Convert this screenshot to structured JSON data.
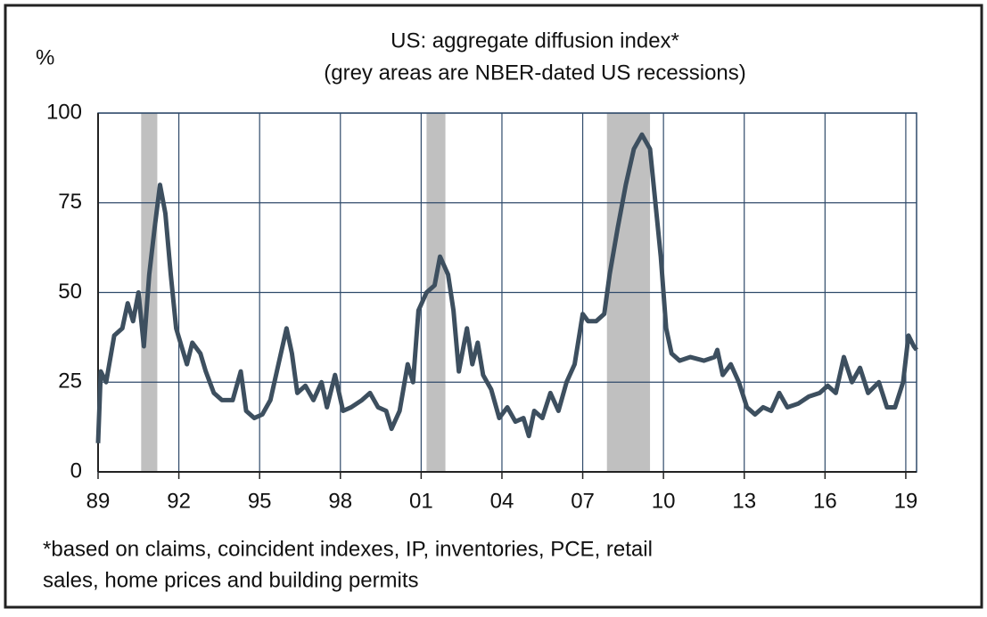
{
  "chart_data": {
    "type": "line",
    "title": "US: aggregate diffusion index*",
    "subtitle": "(grey areas are NBER-dated US recessions)",
    "y_label": "%",
    "footnote": [
      "*based on claims, coincident indexes, IP, inventories, PCE, retail",
      "sales, home prices and building permits"
    ],
    "xlim": [
      1989,
      2019.4
    ],
    "xticks": [
      {
        "value": 1989,
        "label": "89"
      },
      {
        "value": 1992,
        "label": "92"
      },
      {
        "value": 1995,
        "label": "95"
      },
      {
        "value": 1998,
        "label": "98"
      },
      {
        "value": 2001,
        "label": "01"
      },
      {
        "value": 2004,
        "label": "04"
      },
      {
        "value": 2007,
        "label": "07"
      },
      {
        "value": 2010,
        "label": "10"
      },
      {
        "value": 2013,
        "label": "13"
      },
      {
        "value": 2016,
        "label": "16"
      },
      {
        "value": 2019,
        "label": "19"
      }
    ],
    "ylim": [
      0,
      100
    ],
    "yticks": [
      0,
      25,
      50,
      75,
      100
    ],
    "grid": true,
    "recessions": [
      {
        "start": 1990.6,
        "end": 1991.2
      },
      {
        "start": 2001.2,
        "end": 2001.9
      },
      {
        "start": 2007.9,
        "end": 2009.5
      }
    ],
    "recession_color": "#c0c0c0",
    "x": [
      1989.0,
      1989.1,
      1989.3,
      1989.6,
      1989.9,
      1990.1,
      1990.3,
      1990.5,
      1990.7,
      1990.9,
      1991.1,
      1991.3,
      1991.5,
      1991.7,
      1991.9,
      1992.1,
      1992.3,
      1992.5,
      1992.8,
      1993.0,
      1993.3,
      1993.6,
      1994.0,
      1994.3,
      1994.5,
      1994.8,
      1995.1,
      1995.4,
      1995.7,
      1996.0,
      1996.2,
      1996.4,
      1996.7,
      1997.0,
      1997.3,
      1997.5,
      1997.8,
      1998.1,
      1998.4,
      1998.8,
      1999.1,
      1999.4,
      1999.7,
      1999.9,
      2000.2,
      2000.5,
      2000.7,
      2000.9,
      2001.2,
      2001.5,
      2001.7,
      2002.0,
      2002.2,
      2002.4,
      2002.7,
      2002.9,
      2003.1,
      2003.3,
      2003.6,
      2003.9,
      2004.2,
      2004.5,
      2004.8,
      2005.0,
      2005.2,
      2005.5,
      2005.8,
      2006.1,
      2006.4,
      2006.7,
      2007.0,
      2007.2,
      2007.5,
      2007.8,
      2008.0,
      2008.3,
      2008.6,
      2008.9,
      2009.2,
      2009.5,
      2009.7,
      2009.9,
      2010.1,
      2010.3,
      2010.6,
      2011.0,
      2011.5,
      2011.9,
      2012.0,
      2012.2,
      2012.5,
      2012.8,
      2013.1,
      2013.4,
      2013.7,
      2014.0,
      2014.3,
      2014.6,
      2015.0,
      2015.4,
      2015.8,
      2016.1,
      2016.4,
      2016.7,
      2017.0,
      2017.3,
      2017.6,
      2018.0,
      2018.3,
      2018.6,
      2018.9,
      2019.1,
      2019.3,
      2019.4
    ],
    "series": [
      {
        "name": "Aggregate diffusion index",
        "color": "#3d4f5f",
        "values": [
          8,
          28,
          25,
          38,
          40,
          47,
          42,
          50,
          35,
          55,
          68,
          80,
          72,
          55,
          40,
          35,
          30,
          36,
          33,
          28,
          22,
          20,
          20,
          28,
          17,
          15,
          16,
          20,
          30,
          40,
          33,
          22,
          24,
          20,
          25,
          18,
          27,
          17,
          18,
          20,
          22,
          18,
          17,
          12,
          17,
          30,
          25,
          45,
          50,
          52,
          60,
          55,
          45,
          28,
          40,
          30,
          36,
          27,
          23,
          15,
          18,
          14,
          15,
          10,
          17,
          15,
          22,
          17,
          25,
          30,
          44,
          42,
          42,
          44,
          55,
          68,
          80,
          90,
          94,
          90,
          75,
          60,
          40,
          33,
          31,
          32,
          31,
          32,
          34,
          27,
          30,
          25,
          18,
          16,
          18,
          17,
          22,
          18,
          19,
          21,
          22,
          24,
          22,
          32,
          25,
          29,
          22,
          25,
          18,
          18,
          25,
          38,
          35,
          34
        ]
      }
    ]
  }
}
